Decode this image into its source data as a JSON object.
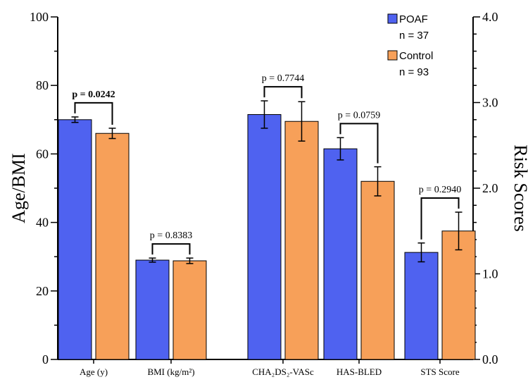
{
  "chart_data": {
    "type": "bar",
    "categories": [
      "Age (y)",
      "BMI (kg/m²)",
      "CHA₂DS₂-VASc",
      "HAS-BLED",
      "STS Score"
    ],
    "axes": [
      "left",
      "left",
      "right",
      "right",
      "right"
    ],
    "series": [
      {
        "name": "POAF",
        "n_label": "n = 37",
        "color": "#4f62f0",
        "values": [
          70.0,
          29.0,
          2.86,
          2.46,
          1.25
        ],
        "errors": [
          0.8,
          0.6,
          0.16,
          0.13,
          0.11
        ]
      },
      {
        "name": "Control",
        "n_label": "n = 93",
        "color": "#f7a059",
        "values": [
          66.0,
          28.8,
          2.78,
          2.08,
          1.5
        ],
        "errors": [
          1.5,
          0.8,
          0.23,
          0.17,
          0.22
        ]
      }
    ],
    "pvalues": [
      {
        "label": "p = 0.0242",
        "bold": true
      },
      {
        "label": "p = 0.8383",
        "bold": false
      },
      {
        "label": "p = 0.7744",
        "bold": false
      },
      {
        "label": "p = 0.0759",
        "bold": false
      },
      {
        "label": "p = 0.2940",
        "bold": false
      }
    ],
    "ylabel_left": "Age/BMI",
    "ylabel_right": "Risk Scores",
    "ylim_left": [
      0,
      100
    ],
    "ylim_right": [
      0,
      4
    ],
    "yticks_left": [
      "0",
      "20",
      "40",
      "60",
      "80",
      "100"
    ],
    "yticks_right": [
      "0.0",
      "1.0",
      "2.0",
      "3.0",
      "4.0"
    ],
    "legend_position": "top-right"
  }
}
